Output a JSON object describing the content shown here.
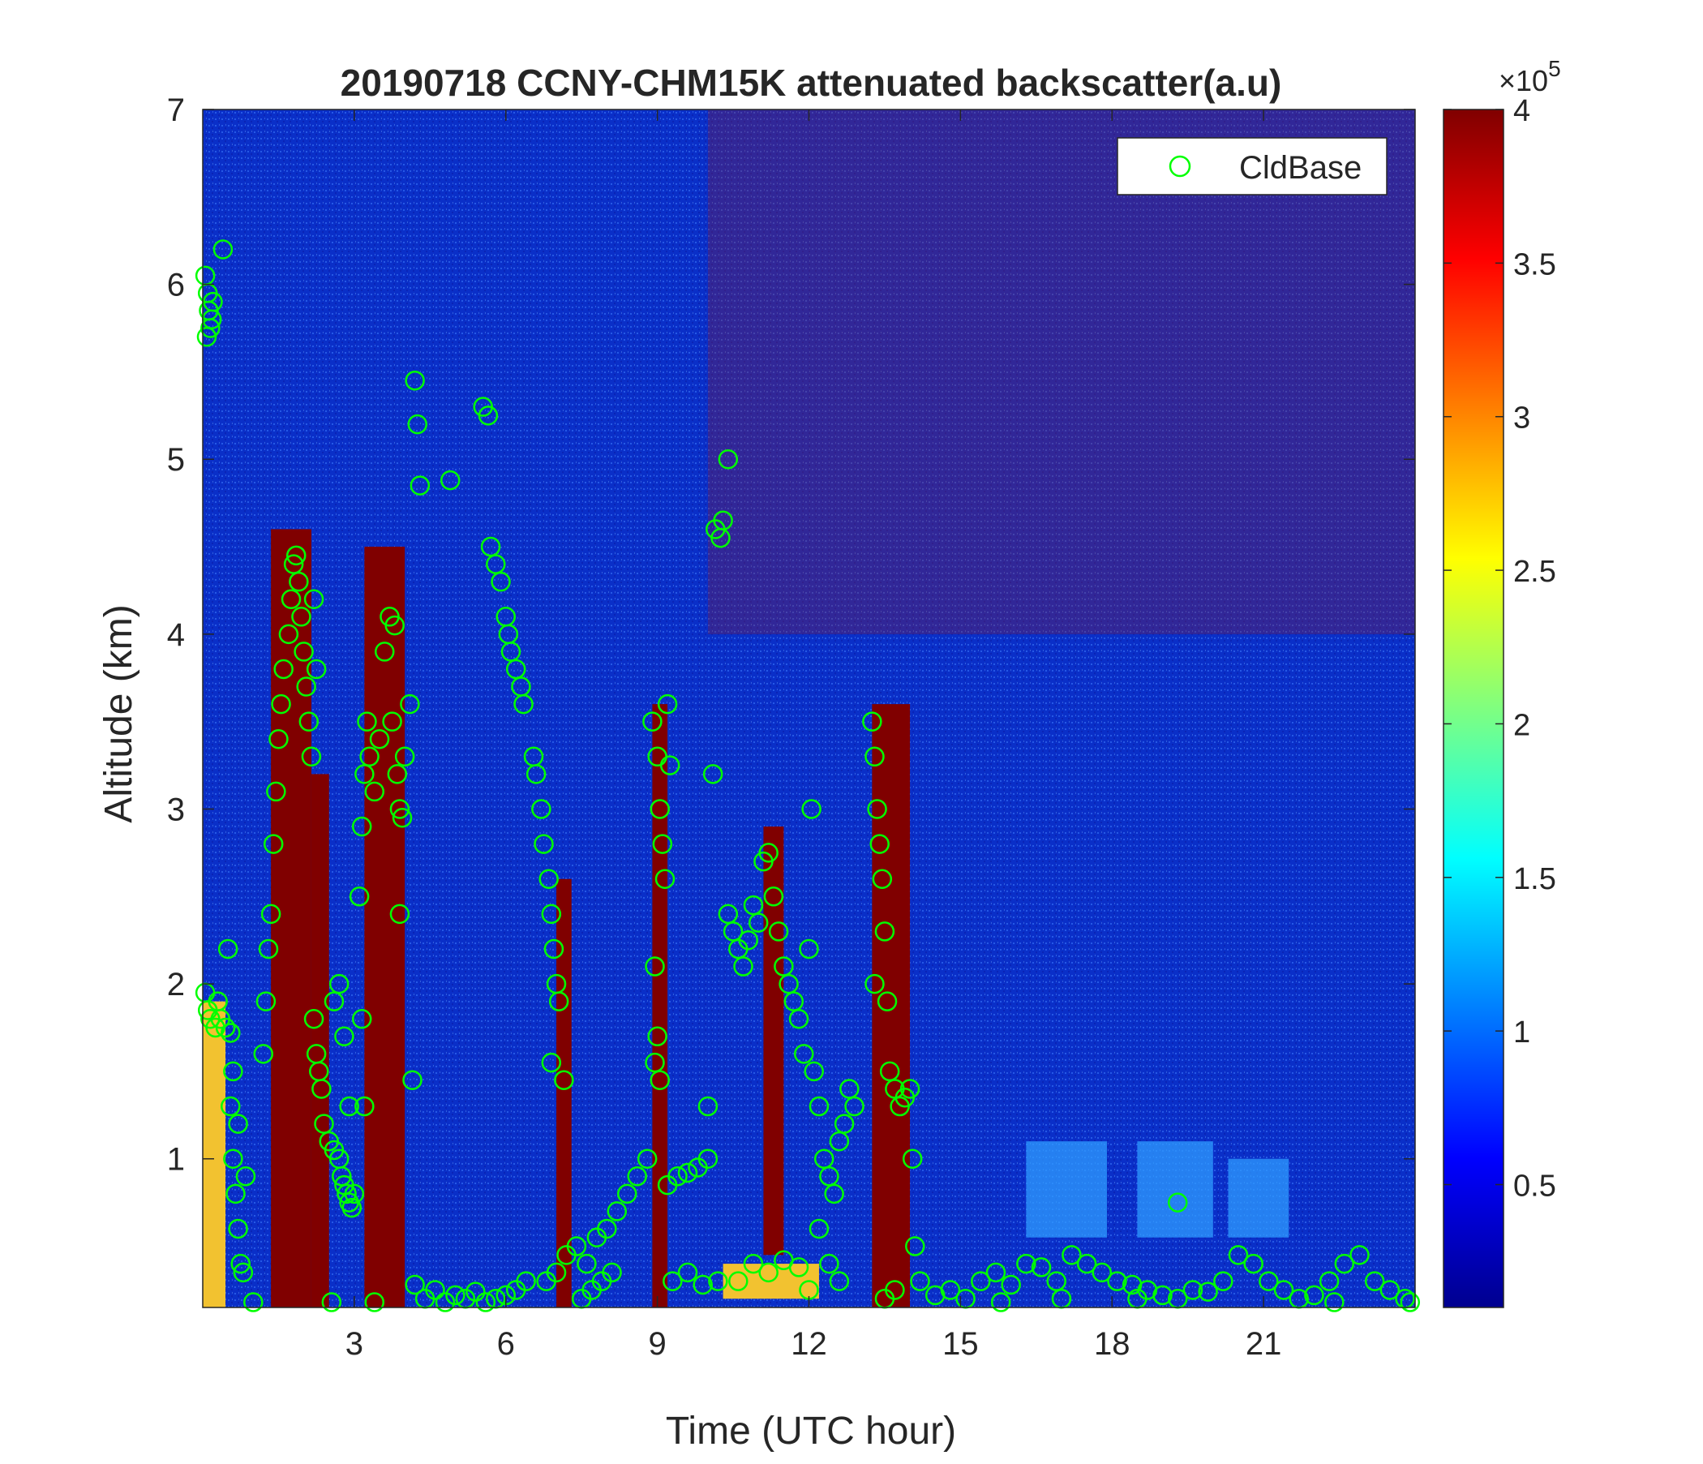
{
  "chart_data": {
    "type": "heatmap",
    "title": "20190718 CCNY-CHM15K attenuated backscatter(a.u)",
    "xlabel": "Time (UTC hour)",
    "ylabel": "Altitude (km)",
    "xlim": [
      0,
      24
    ],
    "ylim": [
      0.15,
      7
    ],
    "xticks": [
      3,
      6,
      9,
      12,
      15,
      18,
      21
    ],
    "xtick_labels": [
      "3",
      "6",
      "9",
      "12",
      "15",
      "18",
      "21"
    ],
    "yticks": [
      1,
      2,
      3,
      4,
      5,
      6,
      7
    ],
    "ytick_labels": [
      "1",
      "2",
      "3",
      "4",
      "5",
      "6",
      "7"
    ],
    "colorbar": {
      "min": 0.1,
      "max": 4,
      "ticks": [
        0.5,
        1,
        1.5,
        2,
        2.5,
        3,
        3.5,
        4
      ],
      "tick_labels": [
        "0.5",
        "1",
        "1.5",
        "2",
        "2.5",
        "3",
        "3.5",
        "4"
      ],
      "multiplier": "×10",
      "exponent": "5",
      "colormap": "jet"
    },
    "legend": {
      "label": "CldBase",
      "placement": "top-right",
      "marker": "circle",
      "color": "#00ff00"
    },
    "cloud_regions": [
      {
        "t0": 0.0,
        "t1": 0.45,
        "z0": 0.15,
        "z1": 1.9,
        "level": "high"
      },
      {
        "t0": 1.35,
        "t1": 2.15,
        "z0": 0.15,
        "z1": 4.6,
        "level": "saturated"
      },
      {
        "t0": 2.15,
        "t1": 2.5,
        "z0": 0.15,
        "z1": 3.2,
        "level": "saturated"
      },
      {
        "t0": 3.2,
        "t1": 4.0,
        "z0": 0.15,
        "z1": 4.5,
        "level": "saturated"
      },
      {
        "t0": 7.0,
        "t1": 7.3,
        "z0": 0.15,
        "z1": 2.6,
        "level": "saturated"
      },
      {
        "t0": 8.9,
        "t1": 9.2,
        "z0": 0.15,
        "z1": 3.6,
        "level": "saturated"
      },
      {
        "t0": 11.1,
        "t1": 11.5,
        "z0": 0.45,
        "z1": 2.9,
        "level": "saturated"
      },
      {
        "t0": 13.25,
        "t1": 14.0,
        "z0": 0.15,
        "z1": 3.6,
        "level": "saturated"
      },
      {
        "t0": 10.3,
        "t1": 12.2,
        "z0": 0.2,
        "z1": 0.4,
        "level": "high"
      },
      {
        "t0": 16.3,
        "t1": 17.9,
        "z0": 0.55,
        "z1": 1.1,
        "level": "medium"
      },
      {
        "t0": 18.5,
        "t1": 20.0,
        "z0": 0.55,
        "z1": 1.1,
        "level": "medium"
      },
      {
        "t0": 20.3,
        "t1": 21.5,
        "z0": 0.55,
        "z1": 1.0,
        "level": "medium"
      }
    ],
    "series": [
      {
        "name": "CldBase",
        "points": [
          [
            0.05,
            6.05
          ],
          [
            0.1,
            5.95
          ],
          [
            0.12,
            5.85
          ],
          [
            0.15,
            5.75
          ],
          [
            0.08,
            5.7
          ],
          [
            0.18,
            5.8
          ],
          [
            0.2,
            5.9
          ],
          [
            0.4,
            6.2
          ],
          [
            0.05,
            1.95
          ],
          [
            0.1,
            1.85
          ],
          [
            0.15,
            1.8
          ],
          [
            0.25,
            1.75
          ],
          [
            0.35,
            1.8
          ],
          [
            0.45,
            1.75
          ],
          [
            0.55,
            1.72
          ],
          [
            0.3,
            1.9
          ],
          [
            0.5,
            2.2
          ],
          [
            0.55,
            1.3
          ],
          [
            0.6,
            1.0
          ],
          [
            0.65,
            0.8
          ],
          [
            0.7,
            0.6
          ],
          [
            0.75,
            0.4
          ],
          [
            0.8,
            0.35
          ],
          [
            0.6,
            1.5
          ],
          [
            0.7,
            1.2
          ],
          [
            0.85,
            0.9
          ],
          [
            1.0,
            0.18
          ],
          [
            1.2,
            1.6
          ],
          [
            1.25,
            1.9
          ],
          [
            1.3,
            2.2
          ],
          [
            1.35,
            2.4
          ],
          [
            1.4,
            2.8
          ],
          [
            1.45,
            3.1
          ],
          [
            1.5,
            3.4
          ],
          [
            1.55,
            3.6
          ],
          [
            1.6,
            3.8
          ],
          [
            1.7,
            4.0
          ],
          [
            1.75,
            4.2
          ],
          [
            1.8,
            4.4
          ],
          [
            1.85,
            4.45
          ],
          [
            1.9,
            4.3
          ],
          [
            1.95,
            4.1
          ],
          [
            2.0,
            3.9
          ],
          [
            2.05,
            3.7
          ],
          [
            2.1,
            3.5
          ],
          [
            2.15,
            3.3
          ],
          [
            2.2,
            4.2
          ],
          [
            2.25,
            3.8
          ],
          [
            2.2,
            1.8
          ],
          [
            2.25,
            1.6
          ],
          [
            2.3,
            1.5
          ],
          [
            2.35,
            1.4
          ],
          [
            2.4,
            1.2
          ],
          [
            2.5,
            1.1
          ],
          [
            2.6,
            1.05
          ],
          [
            2.7,
            1.0
          ],
          [
            2.75,
            0.9
          ],
          [
            2.8,
            0.85
          ],
          [
            2.85,
            0.8
          ],
          [
            2.9,
            0.75
          ],
          [
            2.95,
            0.72
          ],
          [
            3.0,
            0.8
          ],
          [
            2.6,
            1.9
          ],
          [
            2.7,
            2.0
          ],
          [
            2.8,
            1.7
          ],
          [
            2.9,
            1.3
          ],
          [
            2.55,
            0.18
          ],
          [
            3.1,
            2.5
          ],
          [
            3.15,
            2.9
          ],
          [
            3.2,
            3.2
          ],
          [
            3.25,
            3.5
          ],
          [
            3.3,
            3.3
          ],
          [
            3.4,
            3.1
          ],
          [
            3.5,
            3.4
          ],
          [
            3.6,
            3.9
          ],
          [
            3.7,
            4.1
          ],
          [
            3.8,
            4.05
          ],
          [
            3.75,
            3.5
          ],
          [
            3.85,
            3.2
          ],
          [
            3.9,
            3.0
          ],
          [
            3.95,
            2.95
          ],
          [
            4.0,
            3.3
          ],
          [
            3.9,
            2.4
          ],
          [
            3.15,
            1.8
          ],
          [
            3.2,
            1.3
          ],
          [
            3.4,
            0.18
          ],
          [
            4.1,
            3.6
          ],
          [
            4.2,
            5.45
          ],
          [
            4.25,
            5.2
          ],
          [
            4.3,
            4.85
          ],
          [
            4.15,
            1.45
          ],
          [
            4.9,
            4.88
          ],
          [
            4.2,
            0.28
          ],
          [
            4.4,
            0.2
          ],
          [
            4.6,
            0.25
          ],
          [
            4.8,
            0.18
          ],
          [
            5.0,
            0.22
          ],
          [
            5.2,
            0.2
          ],
          [
            5.4,
            0.24
          ],
          [
            5.6,
            0.18
          ],
          [
            5.8,
            0.2
          ],
          [
            6.0,
            0.22
          ],
          [
            6.2,
            0.25
          ],
          [
            6.4,
            0.3
          ],
          [
            5.55,
            5.3
          ],
          [
            5.65,
            5.25
          ],
          [
            5.7,
            4.5
          ],
          [
            5.8,
            4.4
          ],
          [
            5.9,
            4.3
          ],
          [
            6.0,
            4.1
          ],
          [
            6.05,
            4.0
          ],
          [
            6.1,
            3.9
          ],
          [
            6.2,
            3.8
          ],
          [
            6.3,
            3.7
          ],
          [
            6.35,
            3.6
          ],
          [
            6.55,
            3.3
          ],
          [
            6.6,
            3.2
          ],
          [
            6.7,
            3.0
          ],
          [
            6.75,
            2.8
          ],
          [
            6.85,
            2.6
          ],
          [
            6.9,
            2.4
          ],
          [
            6.95,
            2.2
          ],
          [
            7.0,
            2.0
          ],
          [
            7.05,
            1.9
          ],
          [
            6.9,
            1.55
          ],
          [
            7.15,
            1.45
          ],
          [
            6.8,
            0.3
          ],
          [
            7.0,
            0.35
          ],
          [
            7.2,
            0.45
          ],
          [
            7.4,
            0.5
          ],
          [
            7.6,
            0.4
          ],
          [
            7.8,
            0.55
          ],
          [
            8.0,
            0.6
          ],
          [
            8.2,
            0.7
          ],
          [
            8.4,
            0.8
          ],
          [
            8.6,
            0.9
          ],
          [
            8.8,
            1.0
          ],
          [
            7.5,
            0.2
          ],
          [
            7.7,
            0.25
          ],
          [
            7.9,
            0.3
          ],
          [
            8.1,
            0.35
          ],
          [
            8.9,
            3.5
          ],
          [
            9.0,
            3.3
          ],
          [
            9.05,
            3.0
          ],
          [
            9.1,
            2.8
          ],
          [
            9.15,
            2.6
          ],
          [
            9.2,
            3.6
          ],
          [
            9.25,
            3.25
          ],
          [
            8.95,
            2.1
          ],
          [
            9.0,
            1.7
          ],
          [
            8.95,
            1.55
          ],
          [
            9.05,
            1.45
          ],
          [
            9.2,
            0.85
          ],
          [
            9.4,
            0.9
          ],
          [
            9.6,
            0.92
          ],
          [
            9.8,
            0.95
          ],
          [
            10.0,
            1.0
          ],
          [
            9.3,
            0.3
          ],
          [
            9.6,
            0.35
          ],
          [
            9.9,
            0.28
          ],
          [
            10.2,
            0.3
          ],
          [
            10.0,
            1.3
          ],
          [
            10.1,
            3.2
          ],
          [
            10.15,
            4.6
          ],
          [
            10.25,
            4.55
          ],
          [
            10.3,
            4.65
          ],
          [
            10.4,
            5.0
          ],
          [
            10.4,
            2.4
          ],
          [
            10.5,
            2.3
          ],
          [
            10.6,
            2.2
          ],
          [
            10.7,
            2.1
          ],
          [
            10.8,
            2.25
          ],
          [
            10.9,
            2.45
          ],
          [
            11.0,
            2.35
          ],
          [
            11.1,
            2.7
          ],
          [
            11.2,
            2.75
          ],
          [
            11.3,
            2.5
          ],
          [
            11.4,
            2.3
          ],
          [
            11.5,
            2.1
          ],
          [
            11.6,
            2.0
          ],
          [
            11.7,
            1.9
          ],
          [
            11.8,
            1.8
          ],
          [
            11.9,
            1.6
          ],
          [
            12.0,
            2.2
          ],
          [
            12.05,
            3.0
          ],
          [
            12.1,
            1.5
          ],
          [
            12.2,
            1.3
          ],
          [
            12.3,
            1.0
          ],
          [
            12.4,
            0.9
          ],
          [
            12.5,
            0.8
          ],
          [
            12.6,
            1.1
          ],
          [
            12.7,
            1.2
          ],
          [
            12.8,
            1.4
          ],
          [
            12.9,
            1.3
          ],
          [
            12.2,
            0.6
          ],
          [
            12.4,
            0.4
          ],
          [
            12.6,
            0.3
          ],
          [
            10.6,
            0.3
          ],
          [
            10.9,
            0.4
          ],
          [
            11.2,
            0.35
          ],
          [
            11.5,
            0.42
          ],
          [
            11.8,
            0.38
          ],
          [
            12.0,
            0.25
          ],
          [
            13.25,
            3.5
          ],
          [
            13.3,
            3.3
          ],
          [
            13.35,
            3.0
          ],
          [
            13.4,
            2.8
          ],
          [
            13.45,
            2.6
          ],
          [
            13.5,
            2.3
          ],
          [
            13.3,
            2.0
          ],
          [
            13.55,
            1.9
          ],
          [
            13.6,
            1.5
          ],
          [
            13.7,
            1.4
          ],
          [
            13.8,
            1.3
          ],
          [
            13.9,
            1.35
          ],
          [
            14.0,
            1.4
          ],
          [
            14.05,
            1.0
          ],
          [
            14.1,
            0.5
          ],
          [
            13.5,
            0.2
          ],
          [
            13.7,
            0.25
          ],
          [
            14.2,
            0.3
          ],
          [
            14.5,
            0.22
          ],
          [
            14.8,
            0.25
          ],
          [
            15.1,
            0.2
          ],
          [
            15.4,
            0.3
          ],
          [
            15.7,
            0.35
          ],
          [
            16.0,
            0.28
          ],
          [
            16.3,
            0.4
          ],
          [
            16.6,
            0.38
          ],
          [
            16.9,
            0.3
          ],
          [
            17.2,
            0.45
          ],
          [
            17.5,
            0.4
          ],
          [
            17.8,
            0.35
          ],
          [
            18.1,
            0.3
          ],
          [
            18.4,
            0.28
          ],
          [
            18.7,
            0.25
          ],
          [
            19.0,
            0.22
          ],
          [
            19.3,
            0.2
          ],
          [
            19.6,
            0.25
          ],
          [
            19.9,
            0.24
          ],
          [
            20.2,
            0.3
          ],
          [
            20.5,
            0.45
          ],
          [
            20.8,
            0.4
          ],
          [
            21.1,
            0.3
          ],
          [
            21.4,
            0.25
          ],
          [
            21.7,
            0.2
          ],
          [
            22.0,
            0.22
          ],
          [
            22.3,
            0.3
          ],
          [
            22.6,
            0.4
          ],
          [
            22.9,
            0.45
          ],
          [
            23.2,
            0.3
          ],
          [
            23.5,
            0.25
          ],
          [
            23.8,
            0.2
          ],
          [
            23.9,
            0.18
          ],
          [
            19.3,
            0.75
          ],
          [
            18.5,
            0.2
          ],
          [
            15.8,
            0.18
          ],
          [
            17.0,
            0.2
          ],
          [
            22.4,
            0.18
          ]
        ]
      }
    ]
  }
}
